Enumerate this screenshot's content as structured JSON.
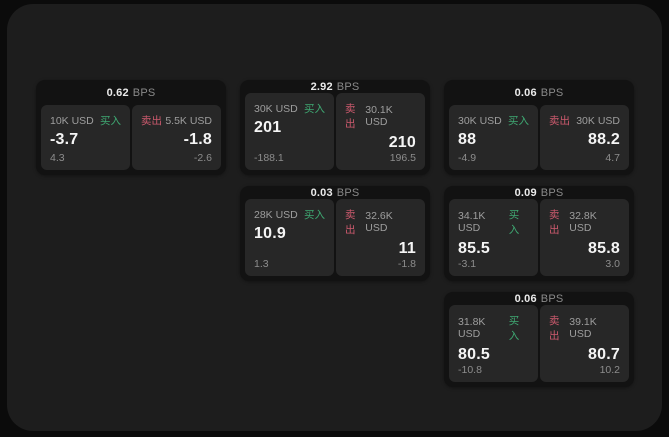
{
  "labels": {
    "bps_unit": "BPS",
    "buy": "买入",
    "sell": "卖出"
  },
  "colors": {
    "buy_accent": "#3fa973",
    "sell_accent": "#cd5a6e",
    "window_bg": "#1d1d1d",
    "card_bg": "#121212",
    "panel_bg": "#272727"
  },
  "cards": [
    {
      "bps": "0.62",
      "buy": {
        "amount": "10K USD",
        "price": "-3.7",
        "delta": "4.3"
      },
      "sell": {
        "amount": "5.5K USD",
        "price": "-1.8",
        "delta": "-2.6"
      }
    },
    {
      "bps": "2.92",
      "buy": {
        "amount": "30K USD",
        "price": "201",
        "delta": "-188.1"
      },
      "sell": {
        "amount": "30.1K USD",
        "price": "210",
        "delta": "196.5"
      }
    },
    {
      "bps": "0.06",
      "buy": {
        "amount": "30K USD",
        "price": "88",
        "delta": "-4.9"
      },
      "sell": {
        "amount": "30K USD",
        "price": "88.2",
        "delta": "4.7"
      }
    },
    {
      "bps": "0.03",
      "buy": {
        "amount": "28K USD",
        "price": "10.9",
        "delta": "1.3"
      },
      "sell": {
        "amount": "32.6K USD",
        "price": "11",
        "delta": "-1.8"
      }
    },
    {
      "bps": "0.09",
      "buy": {
        "amount": "34.1K USD",
        "price": "85.5",
        "delta": "-3.1"
      },
      "sell": {
        "amount": "32.8K USD",
        "price": "85.8",
        "delta": "3.0"
      }
    },
    {
      "bps": "0.06",
      "buy": {
        "amount": "31.8K USD",
        "price": "80.5",
        "delta": "-10.8"
      },
      "sell": {
        "amount": "39.1K USD",
        "price": "80.7",
        "delta": "10.2"
      }
    }
  ]
}
